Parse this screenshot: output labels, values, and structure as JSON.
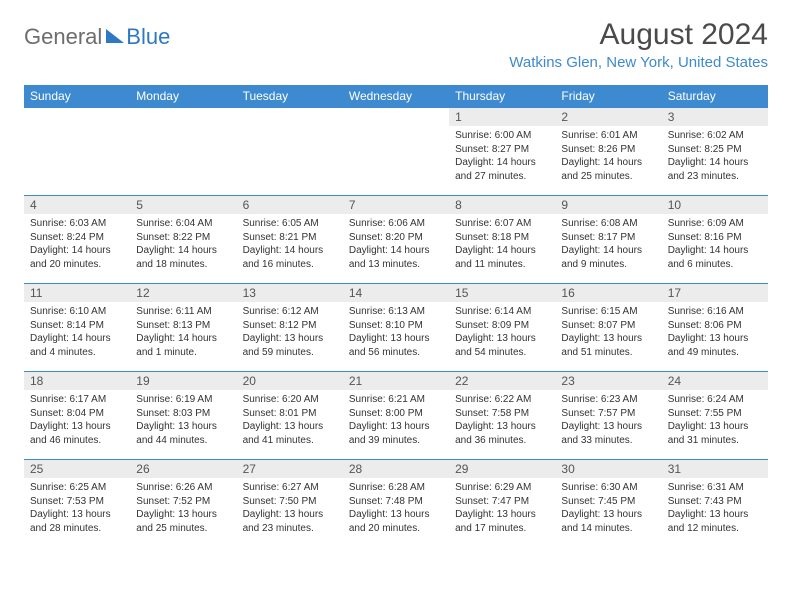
{
  "logo": {
    "part1": "General",
    "part2": "Blue"
  },
  "title": "August 2024",
  "location": "Watkins Glen, New York, United States",
  "colors": {
    "header_bg": "#3e8ad0",
    "header_text": "#ffffff",
    "daynum_bg": "#ececec",
    "row_border": "#3e8ad0",
    "title_color": "#4a4a4a",
    "location_color": "#3e8ad0",
    "logo_gray": "#6d6d6d",
    "logo_blue": "#2f78c3"
  },
  "day_headers": [
    "Sunday",
    "Monday",
    "Tuesday",
    "Wednesday",
    "Thursday",
    "Friday",
    "Saturday"
  ],
  "weeks": [
    [
      null,
      null,
      null,
      null,
      {
        "n": "1",
        "sr": "Sunrise: 6:00 AM",
        "ss": "Sunset: 8:27 PM",
        "dl": "Daylight: 14 hours and 27 minutes."
      },
      {
        "n": "2",
        "sr": "Sunrise: 6:01 AM",
        "ss": "Sunset: 8:26 PM",
        "dl": "Daylight: 14 hours and 25 minutes."
      },
      {
        "n": "3",
        "sr": "Sunrise: 6:02 AM",
        "ss": "Sunset: 8:25 PM",
        "dl": "Daylight: 14 hours and 23 minutes."
      }
    ],
    [
      {
        "n": "4",
        "sr": "Sunrise: 6:03 AM",
        "ss": "Sunset: 8:24 PM",
        "dl": "Daylight: 14 hours and 20 minutes."
      },
      {
        "n": "5",
        "sr": "Sunrise: 6:04 AM",
        "ss": "Sunset: 8:22 PM",
        "dl": "Daylight: 14 hours and 18 minutes."
      },
      {
        "n": "6",
        "sr": "Sunrise: 6:05 AM",
        "ss": "Sunset: 8:21 PM",
        "dl": "Daylight: 14 hours and 16 minutes."
      },
      {
        "n": "7",
        "sr": "Sunrise: 6:06 AM",
        "ss": "Sunset: 8:20 PM",
        "dl": "Daylight: 14 hours and 13 minutes."
      },
      {
        "n": "8",
        "sr": "Sunrise: 6:07 AM",
        "ss": "Sunset: 8:18 PM",
        "dl": "Daylight: 14 hours and 11 minutes."
      },
      {
        "n": "9",
        "sr": "Sunrise: 6:08 AM",
        "ss": "Sunset: 8:17 PM",
        "dl": "Daylight: 14 hours and 9 minutes."
      },
      {
        "n": "10",
        "sr": "Sunrise: 6:09 AM",
        "ss": "Sunset: 8:16 PM",
        "dl": "Daylight: 14 hours and 6 minutes."
      }
    ],
    [
      {
        "n": "11",
        "sr": "Sunrise: 6:10 AM",
        "ss": "Sunset: 8:14 PM",
        "dl": "Daylight: 14 hours and 4 minutes."
      },
      {
        "n": "12",
        "sr": "Sunrise: 6:11 AM",
        "ss": "Sunset: 8:13 PM",
        "dl": "Daylight: 14 hours and 1 minute."
      },
      {
        "n": "13",
        "sr": "Sunrise: 6:12 AM",
        "ss": "Sunset: 8:12 PM",
        "dl": "Daylight: 13 hours and 59 minutes."
      },
      {
        "n": "14",
        "sr": "Sunrise: 6:13 AM",
        "ss": "Sunset: 8:10 PM",
        "dl": "Daylight: 13 hours and 56 minutes."
      },
      {
        "n": "15",
        "sr": "Sunrise: 6:14 AM",
        "ss": "Sunset: 8:09 PM",
        "dl": "Daylight: 13 hours and 54 minutes."
      },
      {
        "n": "16",
        "sr": "Sunrise: 6:15 AM",
        "ss": "Sunset: 8:07 PM",
        "dl": "Daylight: 13 hours and 51 minutes."
      },
      {
        "n": "17",
        "sr": "Sunrise: 6:16 AM",
        "ss": "Sunset: 8:06 PM",
        "dl": "Daylight: 13 hours and 49 minutes."
      }
    ],
    [
      {
        "n": "18",
        "sr": "Sunrise: 6:17 AM",
        "ss": "Sunset: 8:04 PM",
        "dl": "Daylight: 13 hours and 46 minutes."
      },
      {
        "n": "19",
        "sr": "Sunrise: 6:19 AM",
        "ss": "Sunset: 8:03 PM",
        "dl": "Daylight: 13 hours and 44 minutes."
      },
      {
        "n": "20",
        "sr": "Sunrise: 6:20 AM",
        "ss": "Sunset: 8:01 PM",
        "dl": "Daylight: 13 hours and 41 minutes."
      },
      {
        "n": "21",
        "sr": "Sunrise: 6:21 AM",
        "ss": "Sunset: 8:00 PM",
        "dl": "Daylight: 13 hours and 39 minutes."
      },
      {
        "n": "22",
        "sr": "Sunrise: 6:22 AM",
        "ss": "Sunset: 7:58 PM",
        "dl": "Daylight: 13 hours and 36 minutes."
      },
      {
        "n": "23",
        "sr": "Sunrise: 6:23 AM",
        "ss": "Sunset: 7:57 PM",
        "dl": "Daylight: 13 hours and 33 minutes."
      },
      {
        "n": "24",
        "sr": "Sunrise: 6:24 AM",
        "ss": "Sunset: 7:55 PM",
        "dl": "Daylight: 13 hours and 31 minutes."
      }
    ],
    [
      {
        "n": "25",
        "sr": "Sunrise: 6:25 AM",
        "ss": "Sunset: 7:53 PM",
        "dl": "Daylight: 13 hours and 28 minutes."
      },
      {
        "n": "26",
        "sr": "Sunrise: 6:26 AM",
        "ss": "Sunset: 7:52 PM",
        "dl": "Daylight: 13 hours and 25 minutes."
      },
      {
        "n": "27",
        "sr": "Sunrise: 6:27 AM",
        "ss": "Sunset: 7:50 PM",
        "dl": "Daylight: 13 hours and 23 minutes."
      },
      {
        "n": "28",
        "sr": "Sunrise: 6:28 AM",
        "ss": "Sunset: 7:48 PM",
        "dl": "Daylight: 13 hours and 20 minutes."
      },
      {
        "n": "29",
        "sr": "Sunrise: 6:29 AM",
        "ss": "Sunset: 7:47 PM",
        "dl": "Daylight: 13 hours and 17 minutes."
      },
      {
        "n": "30",
        "sr": "Sunrise: 6:30 AM",
        "ss": "Sunset: 7:45 PM",
        "dl": "Daylight: 13 hours and 14 minutes."
      },
      {
        "n": "31",
        "sr": "Sunrise: 6:31 AM",
        "ss": "Sunset: 7:43 PM",
        "dl": "Daylight: 13 hours and 12 minutes."
      }
    ]
  ]
}
